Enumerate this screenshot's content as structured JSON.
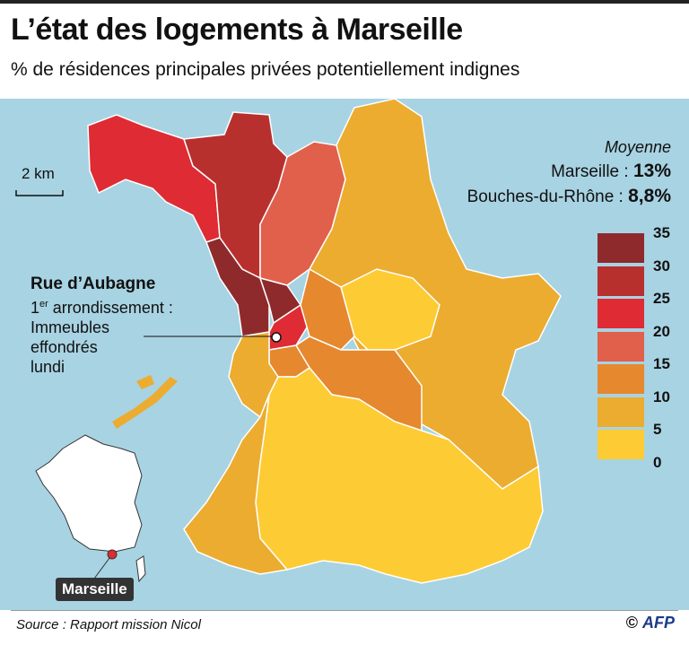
{
  "title": "L’état des logements à Marseille",
  "subtitle": "% de résidences principales privées potentiellement indignes",
  "scale": {
    "label": "2 km"
  },
  "average": {
    "heading": "Moyenne",
    "rows": [
      {
        "label": "Marseille : ",
        "value": "13%"
      },
      {
        "label": "Bouches-du-Rhône : ",
        "value": "8,8%"
      }
    ]
  },
  "legend": {
    "ticks": [
      "35",
      "30",
      "25",
      "20",
      "15",
      "10",
      "5",
      "0"
    ],
    "colors": [
      "#8f2a2c",
      "#b8302e",
      "#df2b33",
      "#e0604c",
      "#e6882e",
      "#ebac30",
      "#fdcb34"
    ]
  },
  "callout": {
    "heading": "Rue d’Aubagne",
    "line1_prefix": "1",
    "line1_sup": "er",
    "line1_rest": " arrondissement :",
    "line2": "Immeubles",
    "line3": "effondrés",
    "line4": "lundi"
  },
  "inset": {
    "city_label": "Marseille"
  },
  "colors": {
    "sea": "#a8d3e3",
    "land_outside": "#ffffff",
    "border": "#ffffff"
  },
  "source": "Source : Rapport mission Nicol",
  "credit": {
    "copyright": "©",
    "agency": "AFP"
  }
}
